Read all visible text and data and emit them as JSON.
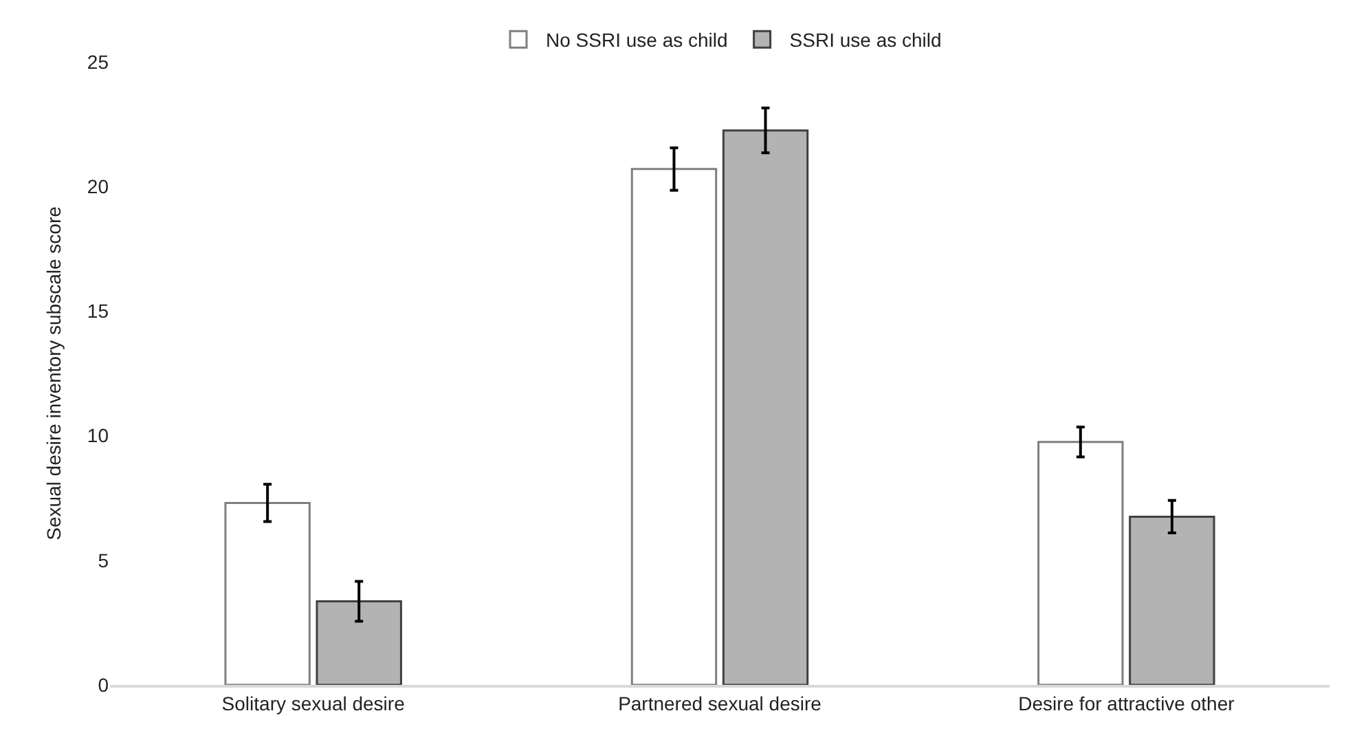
{
  "chart_data": {
    "type": "bar",
    "ylabel": "Sexual desire inventory subscale score",
    "categories": [
      "Solitary sexual desire",
      "Partnered sexual desire",
      "Desire for attractive other"
    ],
    "series": [
      {
        "name": "No SSRI use as child",
        "color": "#ffffff",
        "values": [
          7.3,
          20.7,
          9.75
        ],
        "errors": [
          0.75,
          0.85,
          0.6
        ]
      },
      {
        "name": "SSRI use as child",
        "color": "#b3b3b3",
        "values": [
          3.35,
          22.25,
          6.75
        ],
        "errors": [
          0.8,
          0.9,
          0.65
        ]
      }
    ],
    "ylim": [
      0,
      25
    ],
    "yticks": [
      0,
      5,
      10,
      15,
      20,
      25
    ],
    "grid": false,
    "legend": "top"
  }
}
